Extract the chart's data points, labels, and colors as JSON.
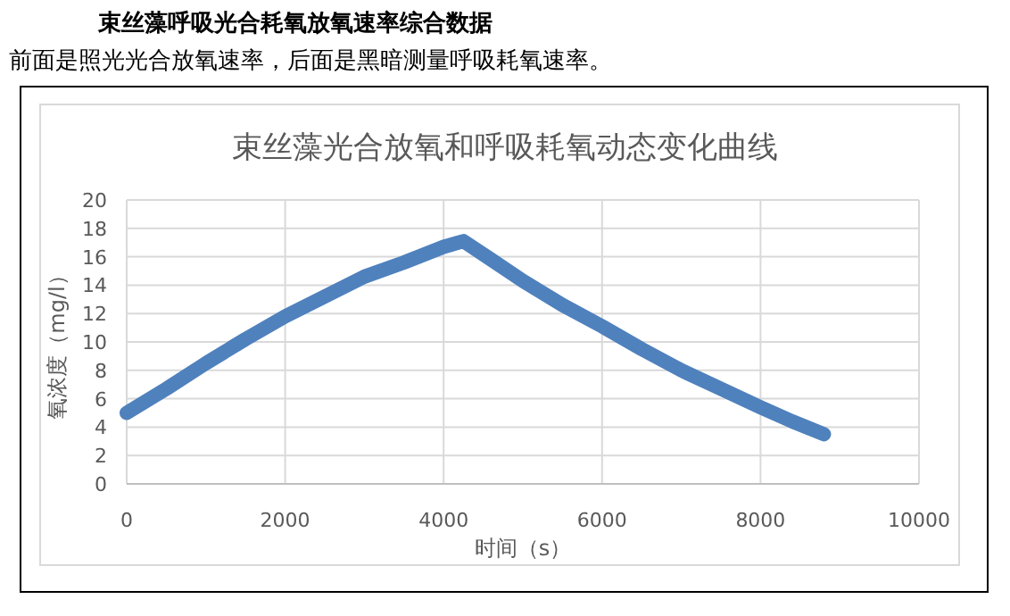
{
  "chart_data": {
    "type": "line",
    "title": "束丝藻光合放氧和呼吸耗氧动态变化曲线",
    "annotations": [
      "束丝藻呼吸光合耗氧放氧速率综合数据",
      "前面是照光光合放氧速率，后面是黑暗测量呼吸耗氧速率。"
    ],
    "xlabel": "时间（s）",
    "ylabel": "氧浓度（mg/l）",
    "series": [
      {
        "color": "#4f81bd",
        "x": [
          0,
          500,
          1000,
          1500,
          2000,
          2500,
          3000,
          3500,
          4000,
          4250,
          4600,
          5000,
          5500,
          6000,
          6500,
          7000,
          7500,
          8000,
          8400,
          8800
        ],
        "values": [
          5,
          6.7,
          8.5,
          10.2,
          11.8,
          13.2,
          14.6,
          15.6,
          16.7,
          17.1,
          15.8,
          14.3,
          12.6,
          11.1,
          9.5,
          8.0,
          6.7,
          5.4,
          4.4,
          3.5
        ]
      }
    ],
    "xlim": [
      0,
      10000
    ],
    "xticks": [
      0,
      2000,
      4000,
      6000,
      8000,
      10000
    ],
    "ylim": [
      0,
      20
    ],
    "yticks": [
      0,
      2,
      4,
      6,
      8,
      10,
      12,
      14,
      16,
      18,
      20
    ],
    "grid": true,
    "marker": "none",
    "line_style": "solid"
  }
}
